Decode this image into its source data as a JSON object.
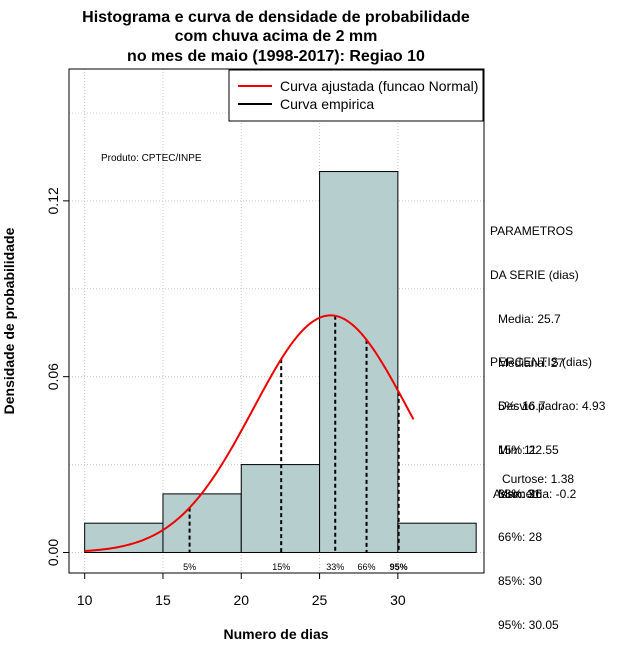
{
  "chart_data": {
    "type": "histogram",
    "title": [
      "Histograma e curva de densidade de probabilidade",
      "com chuva acima de 2 mm",
      "no mes de maio (1998-2017): Regiao 10"
    ],
    "xlabel": "Numero de dias",
    "ylabel": "Densidade de probabilidade",
    "xlim": [
      9,
      35.5
    ],
    "ylim": [
      -0.007,
      0.165
    ],
    "xticks": [
      10,
      15,
      20,
      25,
      30
    ],
    "xtick_labels": [
      "10",
      "15",
      "20",
      "25",
      "30"
    ],
    "yticks": [
      0.0,
      0.06,
      0.12
    ],
    "ytick_labels": [
      "0.00",
      "0.06",
      "0.12"
    ],
    "grid": true,
    "bin_fill": "#b6cece",
    "bins": [
      {
        "x0": 10,
        "x1": 15,
        "density": 0.01
      },
      {
        "x0": 15,
        "x1": 20,
        "density": 0.02
      },
      {
        "x0": 20,
        "x1": 25,
        "density": 0.03
      },
      {
        "x0": 25,
        "x1": 30,
        "density": 0.13
      },
      {
        "x0": 30,
        "x1": 35,
        "density": 0.01
      }
    ],
    "normal_fit": {
      "mean": 25.7,
      "sd": 4.93,
      "x_from": 10,
      "x_to": 31,
      "color": "#ee0000"
    },
    "percentiles": [
      {
        "label": "5%",
        "x": 16.7,
        "bold": false
      },
      {
        "label": "15%",
        "x": 22.55,
        "bold": false
      },
      {
        "label": "33%",
        "x": 26,
        "bold": false
      },
      {
        "label": "66%",
        "x": 28,
        "bold": false
      },
      {
        "label": "95%",
        "x": 30.05,
        "bold": true
      }
    ],
    "legend": {
      "position": "top-right",
      "entries": [
        {
          "label": "Curva ajustada (funcao Normal)",
          "color": "#ee0000"
        },
        {
          "label": "Curva empirica",
          "color": "#000000"
        }
      ]
    },
    "annotation": "Produto: CPTEC/INPE"
  },
  "side_panel": {
    "params_title_1": "PARAMETROS",
    "params_title_2": "DA SERIE (dias)",
    "media": "Media: 25.7",
    "mediana": "Mediana: 27",
    "desvio": "Desvio padrao: 4.93",
    "min": "Min: 11",
    "max": "Max: 31",
    "percentis_title": "PERCENTIS (dias)",
    "p5": "5%: 16.7",
    "p15": "15%: 22.55",
    "p33": "33%: 26",
    "p66": "66%: 28",
    "p85": "85%: 30",
    "p95": "95%: 30.05",
    "curtose": "Curtose: 1.38",
    "assimetria": "Assimetria: -0.2"
  }
}
